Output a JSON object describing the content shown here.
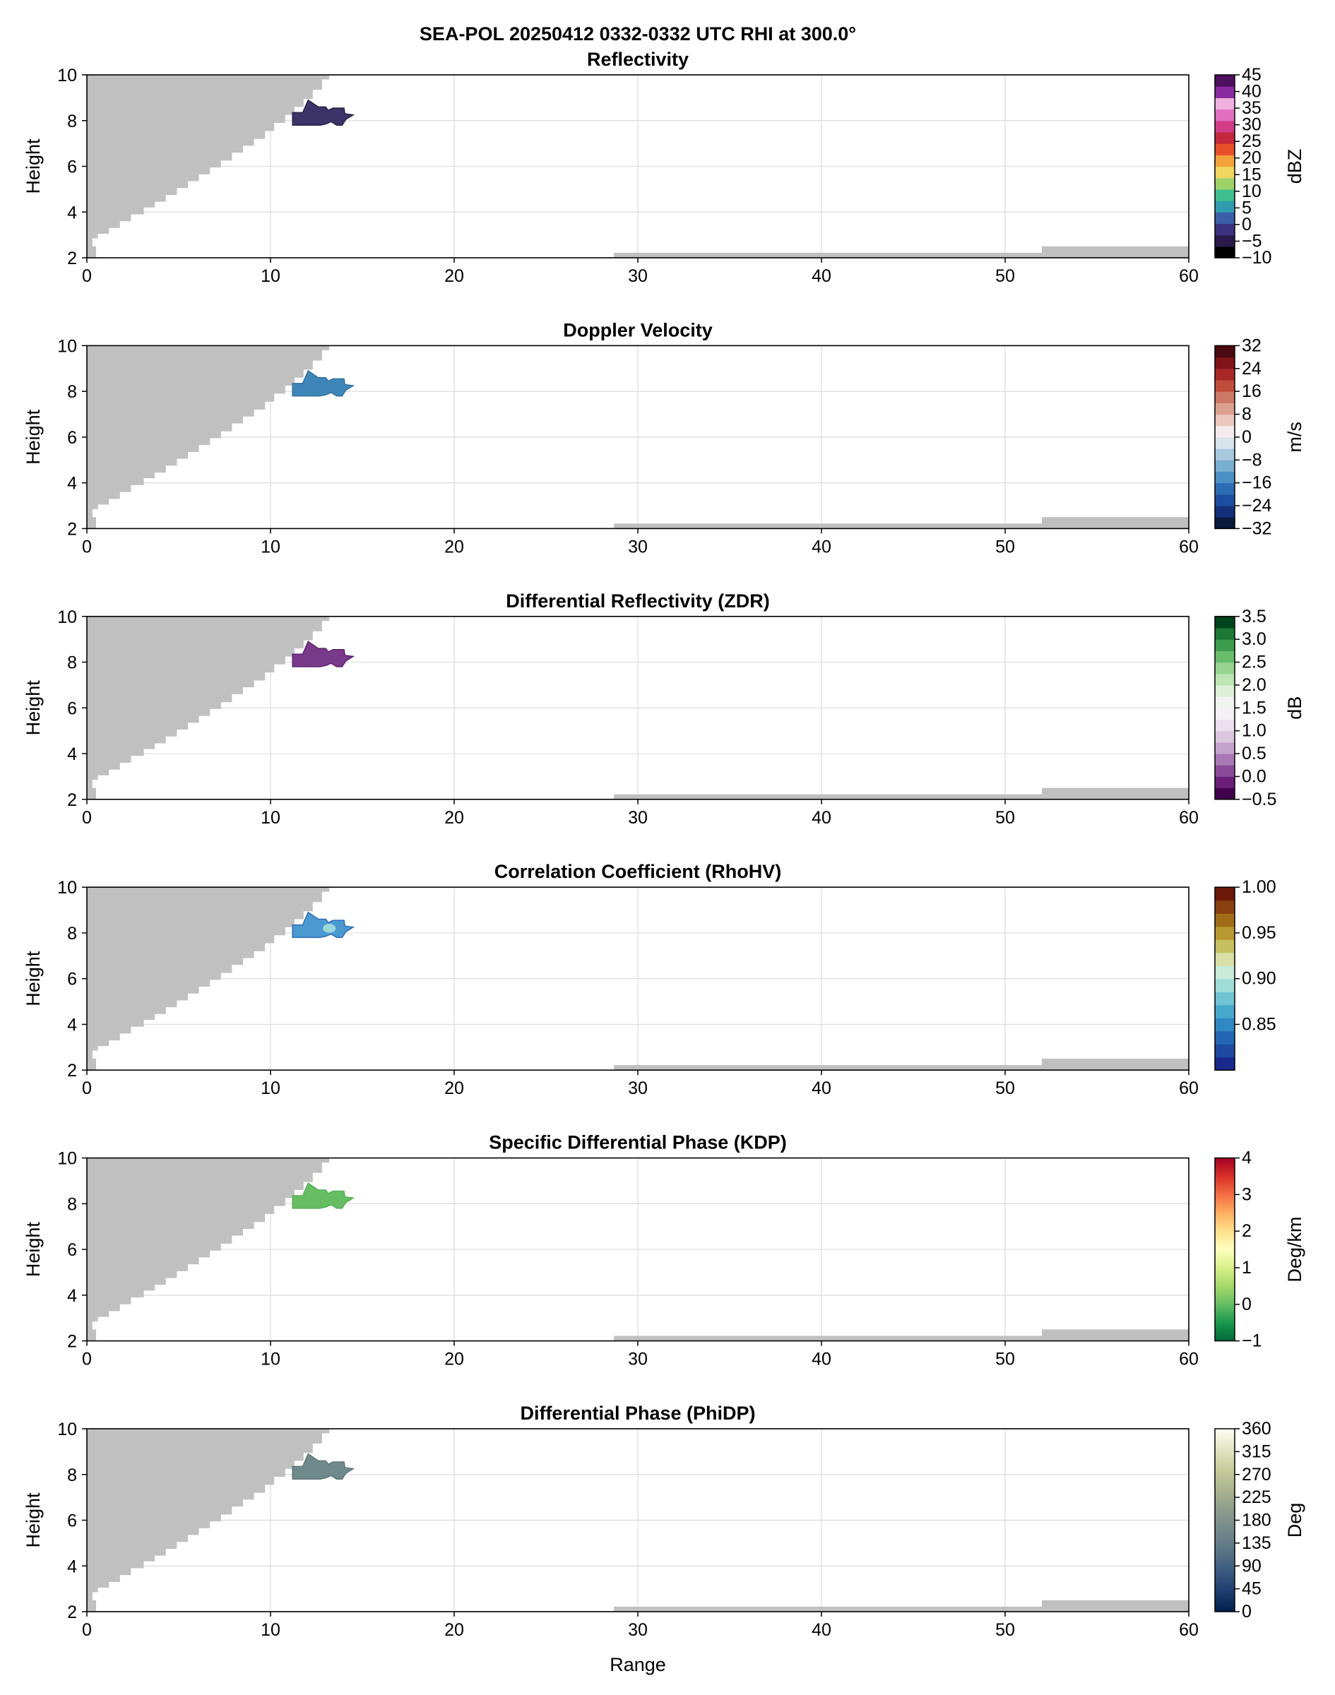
{
  "suptitle": "SEA-POL 20250412 0332-0332 UTC RHI at 300.0°",
  "xlabel": "Range",
  "ylabel": "Height",
  "chart_data": [
    {
      "type": "heatmap",
      "title": "Reflectivity",
      "xlim": [
        0,
        60
      ],
      "ylim": [
        2,
        10
      ],
      "xticks": [
        0,
        10,
        20,
        30,
        40,
        50,
        60
      ],
      "yticks": [
        2,
        4,
        6,
        8,
        10
      ],
      "grid": true,
      "echo_range_km": [
        11.2,
        14.5
      ],
      "echo_height_km": [
        7.8,
        8.9
      ],
      "colorbar": {
        "label": "dBZ",
        "min": -10,
        "max": 45,
        "ticks": [
          -10,
          -5,
          0,
          5,
          10,
          15,
          20,
          25,
          30,
          35,
          40,
          45
        ],
        "tick_labels": [
          "−10",
          "−5",
          "0",
          "5",
          "10",
          "15",
          "20",
          "25",
          "30",
          "35",
          "40",
          "45"
        ],
        "colors": [
          "#000000",
          "#2a1a4a",
          "#3c3280",
          "#3b5fa8",
          "#2f9cb0",
          "#3fbf8f",
          "#9fd36a",
          "#f0d860",
          "#f4a23c",
          "#e8502a",
          "#c4283c",
          "#d23c88",
          "#e070c0",
          "#f0b0e0",
          "#8a2aa0",
          "#501060"
        ],
        "echo_color": "#3c3468",
        "echo_color_dark": "#2a2448"
      }
    },
    {
      "type": "heatmap",
      "title": "Doppler Velocity",
      "xlim": [
        0,
        60
      ],
      "ylim": [
        2,
        10
      ],
      "xticks": [
        0,
        10,
        20,
        30,
        40,
        50,
        60
      ],
      "yticks": [
        2,
        4,
        6,
        8,
        10
      ],
      "grid": true,
      "echo_range_km": [
        11.2,
        14.5
      ],
      "echo_height_km": [
        7.8,
        8.9
      ],
      "colorbar": {
        "label": "m/s",
        "min": -32,
        "max": 32,
        "ticks": [
          -32,
          -24,
          -16,
          -8,
          0,
          8,
          16,
          24,
          32
        ],
        "tick_labels": [
          "−32",
          "−24",
          "−16",
          "−8",
          "0",
          "8",
          "16",
          "24",
          "32"
        ],
        "colors": [
          "#0a1a3c",
          "#14307a",
          "#1e4ea0",
          "#2c6cb4",
          "#4a90c4",
          "#78aed0",
          "#a8c8dc",
          "#d8e4ec",
          "#f4ecec",
          "#ecc8bc",
          "#dca090",
          "#cc7864",
          "#c04c3c",
          "#a82828",
          "#801418",
          "#4a0a10"
        ],
        "echo_color": "#3f86b8",
        "echo_color_dark": "#2f70a0"
      }
    },
    {
      "type": "heatmap",
      "title": "Differential Reflectivity (ZDR)",
      "xlim": [
        0,
        60
      ],
      "ylim": [
        2,
        10
      ],
      "xticks": [
        0,
        10,
        20,
        30,
        40,
        50,
        60
      ],
      "yticks": [
        2,
        4,
        6,
        8,
        10
      ],
      "grid": true,
      "echo_range_km": [
        11.2,
        14.5
      ],
      "echo_height_km": [
        7.8,
        8.9
      ],
      "colorbar": {
        "label": "dB",
        "min": -0.5,
        "max": 3.5,
        "ticks": [
          -0.5,
          0.0,
          0.5,
          1.0,
          1.5,
          2.0,
          2.5,
          3.0,
          3.5
        ],
        "tick_labels": [
          "−0.5",
          "0.0",
          "0.5",
          "1.0",
          "1.5",
          "2.0",
          "2.5",
          "3.0",
          "3.5"
        ],
        "colors": [
          "#40004b",
          "#6a1e78",
          "#8a4a98",
          "#a878b4",
          "#c4a2cc",
          "#dcc6e0",
          "#ece0f0",
          "#f4f0f4",
          "#f0f4f0",
          "#dcf0d8",
          "#bce4b4",
          "#96d490",
          "#68bc6c",
          "#3c9c4c",
          "#1c7834",
          "#00441b"
        ],
        "echo_color": "#7a3a8c",
        "echo_color_dark": "#5e2270"
      }
    },
    {
      "type": "heatmap",
      "title": "Correlation Coefficient (RhoHV)",
      "xlim": [
        0,
        60
      ],
      "ylim": [
        2,
        10
      ],
      "xticks": [
        0,
        10,
        20,
        30,
        40,
        50,
        60
      ],
      "yticks": [
        2,
        4,
        6,
        8,
        10
      ],
      "grid": true,
      "echo_range_km": [
        11.2,
        14.5
      ],
      "echo_height_km": [
        7.8,
        8.9
      ],
      "colorbar": {
        "label": "",
        "min": 0.8,
        "max": 1.0,
        "ticks": [
          0.85,
          0.9,
          0.95,
          1.0
        ],
        "tick_labels": [
          "0.85",
          "0.90",
          "0.95",
          "1.00"
        ],
        "colors": [
          "#1a2a8c",
          "#1e4aa0",
          "#2468b4",
          "#3088c4",
          "#48a8cc",
          "#70c4d4",
          "#a0dcd8",
          "#c8ecd8",
          "#d8e0a8",
          "#c8c060",
          "#b89830",
          "#a06c18",
          "#884010",
          "#6a1808"
        ],
        "echo_color": "#4a9ad0",
        "echo_color_dark": "#2f6cb8",
        "echo_color_light": "#a8e0dc"
      }
    },
    {
      "type": "heatmap",
      "title": "Specific Differential Phase (KDP)",
      "xlim": [
        0,
        60
      ],
      "ylim": [
        2,
        10
      ],
      "xticks": [
        0,
        10,
        20,
        30,
        40,
        50,
        60
      ],
      "yticks": [
        2,
        4,
        6,
        8,
        10
      ],
      "grid": true,
      "echo_range_km": [
        11.2,
        14.5
      ],
      "echo_height_km": [
        7.8,
        8.9
      ],
      "colorbar": {
        "label": "Deg/km",
        "min": -1,
        "max": 4,
        "ticks": [
          -1,
          0,
          1,
          2,
          3,
          4
        ],
        "tick_labels": [
          "−1",
          "0",
          "1",
          "2",
          "3",
          "4"
        ],
        "gradient": [
          "#006837",
          "#1a9850",
          "#66bd63",
          "#a6d96a",
          "#d9ef8b",
          "#ffffbf",
          "#fee08b",
          "#fdae61",
          "#f46d43",
          "#d73027",
          "#a50026"
        ],
        "echo_color": "#66bd63",
        "echo_color_dark": "#5ab05a"
      }
    },
    {
      "type": "heatmap",
      "title": "Differential Phase (PhiDP)",
      "xlim": [
        0,
        60
      ],
      "ylim": [
        2,
        10
      ],
      "xticks": [
        0,
        10,
        20,
        30,
        40,
        50,
        60
      ],
      "yticks": [
        2,
        4,
        6,
        8,
        10
      ],
      "grid": true,
      "echo_range_km": [
        11.2,
        14.5
      ],
      "echo_height_km": [
        7.8,
        8.9
      ],
      "colorbar": {
        "label": "Deg",
        "min": 0,
        "max": 360,
        "ticks": [
          0,
          45,
          90,
          135,
          180,
          225,
          270,
          315,
          360
        ],
        "tick_labels": [
          "0",
          "45",
          "90",
          "135",
          "180",
          "225",
          "270",
          "315",
          "360"
        ],
        "gradient": [
          "#00204c",
          "#1f3d6e",
          "#3c5a80",
          "#5a7686",
          "#73888a",
          "#8e9c8c",
          "#aab48e",
          "#c8cc9c",
          "#e4e4c4",
          "#fffff4"
        ],
        "echo_color": "#708a8c",
        "echo_color_dark": "#5c7478"
      }
    }
  ],
  "blockage": {
    "elevation_top_range_km": [
      0.0,
      0.3,
      0.6,
      1.2,
      1.8,
      2.4,
      3.1,
      3.7,
      4.3,
      4.9,
      5.5,
      6.1,
      6.7,
      7.3,
      7.9,
      8.5,
      9.1,
      9.7,
      10.2,
      10.8,
      11.3,
      11.8,
      12.3,
      12.8
    ],
    "elevation_top_height_km": [
      2.45,
      2.85,
      3.05,
      3.3,
      3.6,
      3.9,
      4.2,
      4.45,
      4.75,
      5.05,
      5.35,
      5.65,
      5.95,
      6.25,
      6.6,
      6.9,
      7.2,
      7.55,
      7.9,
      8.25,
      8.6,
      8.95,
      9.35,
      9.8
    ],
    "ground_bands": [
      {
        "range_km": [
          28.7,
          52.0
        ],
        "height_km": [
          2.0,
          2.22
        ]
      },
      {
        "range_km": [
          52.0,
          60.0
        ],
        "height_km": [
          2.0,
          2.5
        ]
      }
    ],
    "color": "#c0c0c0"
  }
}
